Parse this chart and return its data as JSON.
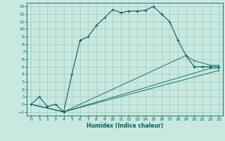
{
  "title": "",
  "xlabel": "Humidex (Indice chaleur)",
  "ylabel": "",
  "bg_color": "#c8e8e0",
  "grid_color": "#a0c8c0",
  "line_color": "#006060",
  "xlim": [
    -0.5,
    23.5
  ],
  "ylim": [
    -1.5,
    13.5
  ],
  "xticks": [
    0,
    1,
    2,
    3,
    4,
    5,
    6,
    7,
    8,
    9,
    10,
    11,
    12,
    13,
    14,
    15,
    16,
    17,
    18,
    19,
    20,
    21,
    22,
    23
  ],
  "yticks": [
    -1,
    0,
    1,
    2,
    3,
    4,
    5,
    6,
    7,
    8,
    9,
    10,
    11,
    12,
    13
  ],
  "series": [
    {
      "x": [
        0,
        1,
        2,
        3,
        4,
        5,
        6,
        7,
        8,
        9,
        10,
        11,
        12,
        13,
        14,
        15,
        16,
        17,
        18,
        19,
        20,
        21,
        22,
        23
      ],
      "y": [
        0,
        1,
        -0.3,
        0,
        -1,
        4,
        8.5,
        9,
        10.5,
        11.5,
        12.6,
        12.2,
        12.4,
        12.4,
        12.5,
        13,
        12,
        11,
        8.5,
        6.5,
        5,
        5,
        5,
        5
      ]
    },
    {
      "x": [
        0,
        4,
        19,
        20,
        22,
        23
      ],
      "y": [
        0,
        -1,
        6.5,
        5.8,
        5.2,
        5.2
      ]
    },
    {
      "x": [
        0,
        4,
        22,
        23
      ],
      "y": [
        0,
        -1,
        4.8,
        4.8
      ]
    },
    {
      "x": [
        0,
        4,
        23
      ],
      "y": [
        0,
        -1,
        4.5
      ]
    }
  ]
}
